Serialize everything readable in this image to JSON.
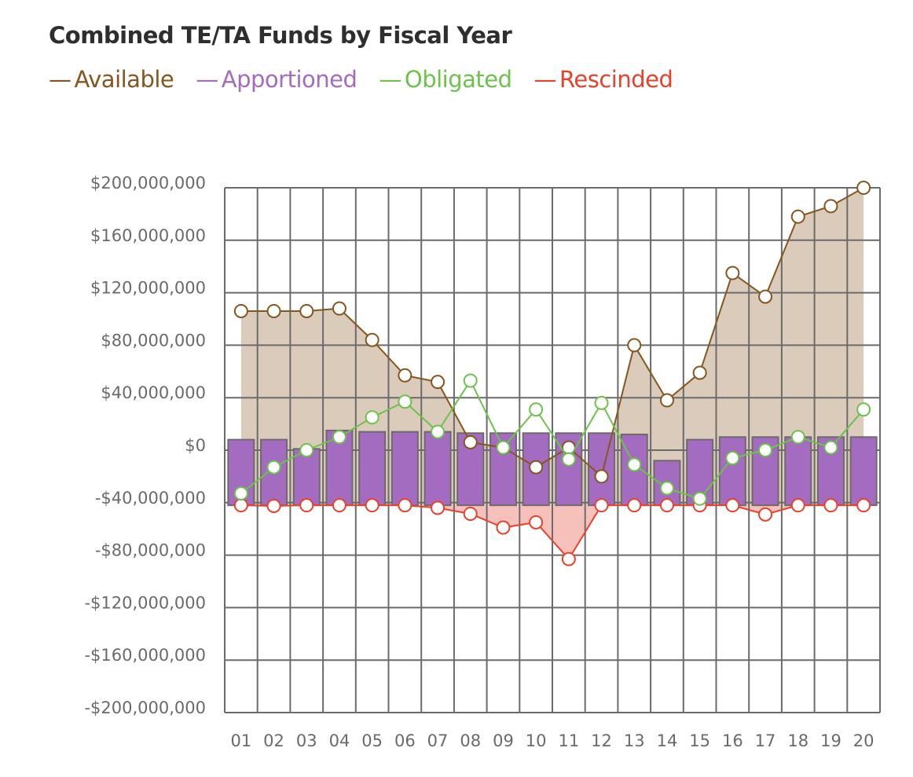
{
  "chart_data": {
    "type": "bar+line+area",
    "title": "Combined TE/TA Funds by Fiscal Year",
    "xlabel": "",
    "ylabel": "",
    "categories": [
      "01",
      "02",
      "03",
      "04",
      "05",
      "06",
      "07",
      "08",
      "09",
      "10",
      "11",
      "12",
      "13",
      "14",
      "15",
      "16",
      "17",
      "18",
      "19",
      "20"
    ],
    "ylim": [
      -200000000,
      200000000
    ],
    "yticks": [
      200000000,
      160000000,
      120000000,
      80000000,
      40000000,
      0,
      -40000000,
      -80000000,
      -120000000,
      -160000000,
      -200000000
    ],
    "ytick_labels": [
      "$200,000,000",
      "$160,000,000",
      "$120,000,000",
      "$80,000,000",
      "$40,000,000",
      "$0",
      "-$40,000,000",
      "-$80,000,000",
      "-$120,000,000",
      "-$160,000,000",
      "-$200,000,000"
    ],
    "grid": true,
    "legend_position": "top-left",
    "series": [
      {
        "name": "Available",
        "type": "area-line",
        "color": "#85561f",
        "fill": "#dbcbbb",
        "values": [
          106000000,
          106000000,
          106000000,
          108000000,
          84000000,
          57000000,
          52000000,
          6000000,
          2000000,
          -13000000,
          2000000,
          -20000000,
          80000000,
          38000000,
          59000000,
          135000000,
          117000000,
          178000000,
          186000000,
          200000000
        ]
      },
      {
        "name": "Apportioned",
        "type": "bar",
        "color": "#a36cc0",
        "values": [
          8000000,
          8000000,
          1000000,
          15000000,
          14000000,
          14000000,
          14000000,
          13000000,
          13000000,
          13000000,
          13000000,
          13000000,
          12000000,
          -8000000,
          8000000,
          10000000,
          10000000,
          10000000,
          10000000,
          10000000
        ]
      },
      {
        "name": "Obligated",
        "type": "line",
        "color": "#6cc24a",
        "values": [
          -33000000,
          -13000000,
          0,
          10000000,
          25000000,
          37000000,
          14000000,
          53000000,
          2000000,
          31000000,
          -7000000,
          36000000,
          -11000000,
          -29000000,
          -37000000,
          -6000000,
          0,
          10000000,
          2000000,
          31000000
        ]
      },
      {
        "name": "Rescinded",
        "type": "area-line",
        "color": "#e8412c",
        "fill": "#f7c1bb",
        "values": [
          -42000000,
          -42500000,
          -42000000,
          -42000000,
          -42000000,
          -42000000,
          -44000000,
          -48500000,
          -59000000,
          -55000000,
          -83000000,
          -42000000,
          -42000000,
          -42000000,
          -42000000,
          -42000000,
          -49000000,
          -42000000,
          -42000000,
          -42000000
        ]
      }
    ]
  }
}
